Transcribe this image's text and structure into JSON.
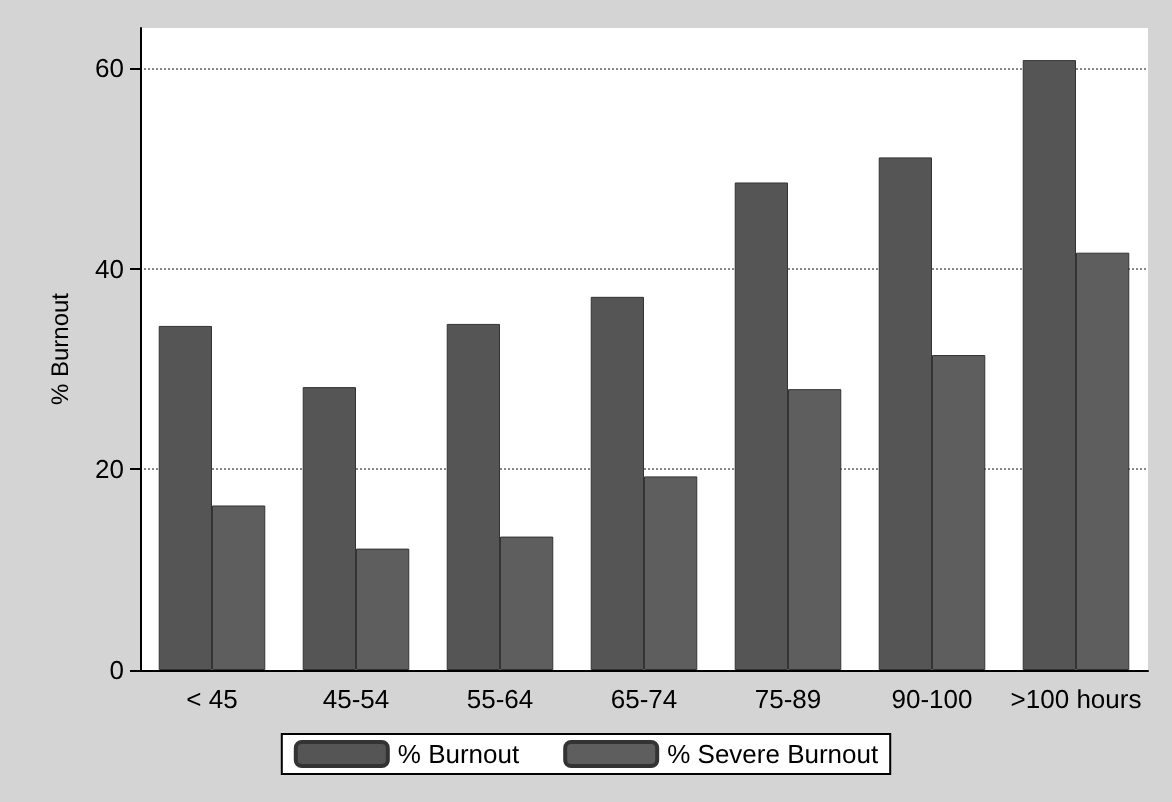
{
  "chart_data": {
    "type": "bar",
    "ylabel": "% Burnout",
    "categories": [
      "< 45",
      "45-54",
      "55-64",
      "65-74",
      "75-89",
      "90-100",
      ">100 hours"
    ],
    "series": [
      {
        "name": "% Burnout",
        "color": "#555555",
        "values": [
          34.3,
          28.2,
          34.5,
          37.2,
          48.6,
          51.1,
          60.8
        ]
      },
      {
        "name": "% Severe Burnout",
        "color": "#5e5e5e",
        "values": [
          16.4,
          12.1,
          13.3,
          19.3,
          28,
          31.4,
          41.6
        ]
      }
    ],
    "ylim": [
      0,
      64
    ],
    "yticks": [
      0,
      20,
      40,
      60
    ],
    "grid": "y",
    "legend": "bottom"
  }
}
